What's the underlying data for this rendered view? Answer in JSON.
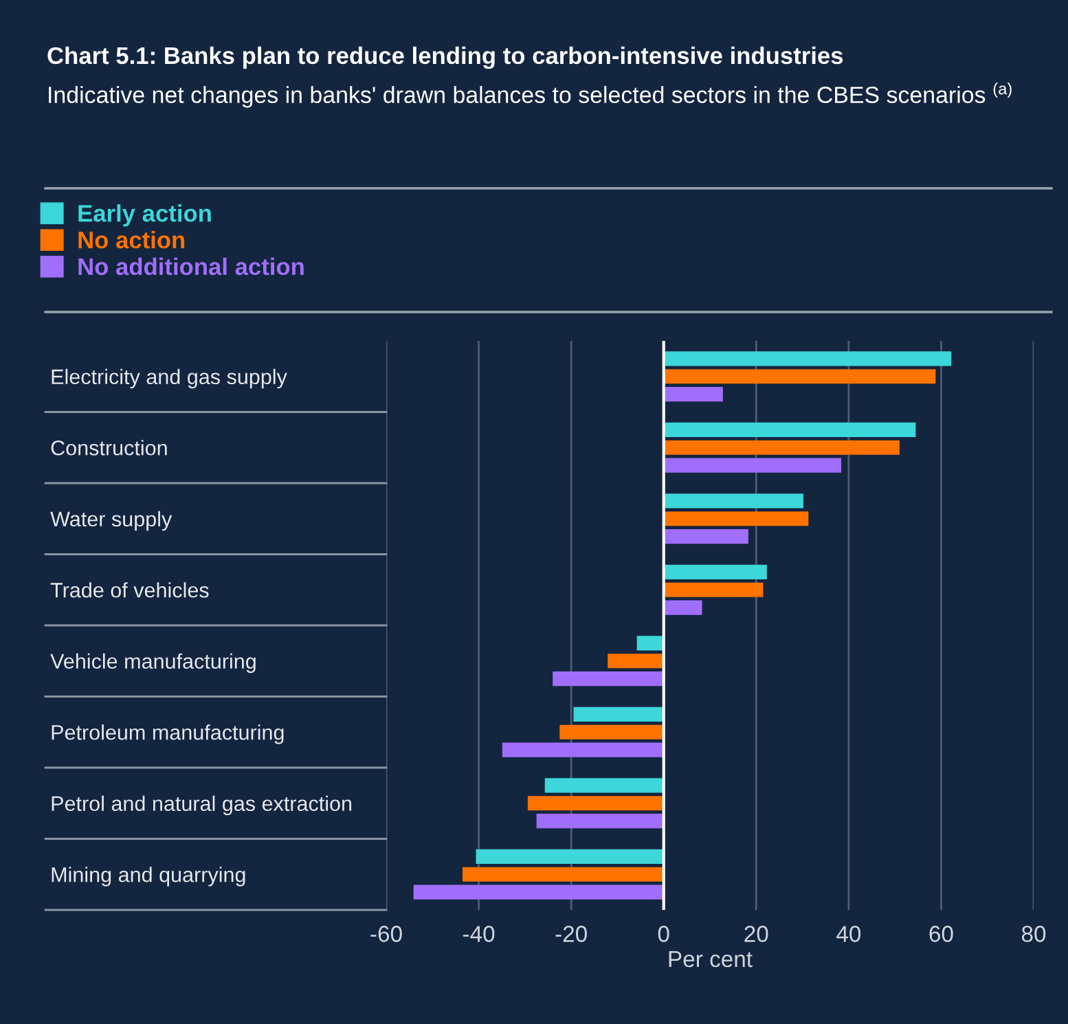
{
  "chart_data": {
    "type": "bar",
    "orientation": "horizontal",
    "title": "Chart 5.1: Banks plan to reduce lending to carbon-intensive industries",
    "subtitle": "Indicative net changes in banks' drawn balances to selected sectors in the CBES scenarios $^{(a)}$",
    "xlabel": "Per cent",
    "categories": [
      "Electricity and gas supply",
      "Construction",
      "Water supply",
      "Trade of vehicles",
      "Vehicle manufacturing",
      "Petroleum manufacturing",
      "Petrol and natural gas extraction",
      "Mining and quarrying"
    ],
    "series": [
      {
        "name": "Early action",
        "color": "#3dd6d9",
        "values": [
          62.1,
          54.4,
          30.1,
          22.2,
          -5.7,
          -19.4,
          -25.6,
          -40.5
        ]
      },
      {
        "name": "No action",
        "color": "#ff7300",
        "values": [
          58.7,
          50.9,
          31.2,
          21.4,
          -12,
          -22.4,
          -29.3,
          -43.4
        ]
      },
      {
        "name": "No additional action",
        "color": "#a06ffa",
        "values": [
          12.7,
          38.3,
          18.2,
          8.2,
          -23.9,
          -34.8,
          -27.4,
          -54
        ]
      }
    ],
    "xlim": [
      -60,
      80
    ],
    "xticks": [
      -60,
      -40,
      -20,
      0,
      20,
      40,
      60,
      80
    ],
    "grid": "x",
    "legend": "top left"
  }
}
